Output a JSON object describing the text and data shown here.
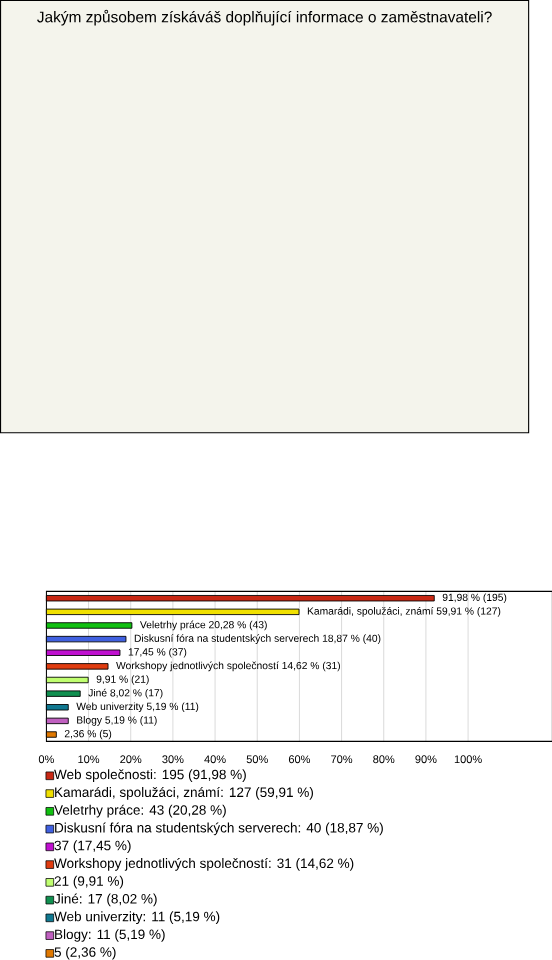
{
  "chart_data": {
    "type": "bar",
    "orientation": "horizontal",
    "title": "Jakým způsobem získáváš doplňující informace o zaměstnavateli?",
    "categories": [
      null,
      null,
      null,
      null,
      null,
      null,
      null,
      null,
      null,
      null,
      null
    ],
    "series": [
      {
        "name": "Web společnosti: 195 (91,98 %)",
        "color": "#c82814",
        "values": [
          91.98,
          null,
          null,
          null,
          null,
          null,
          null,
          null,
          null,
          null,
          null
        ],
        "value_labels": [
          "91,98 % (195)",
          null,
          null,
          null,
          null,
          null,
          null,
          null,
          null,
          null,
          null
        ]
      },
      {
        "name": "Kamarádi, spolužáci, známí: 127 (59,91 %)",
        "color": "#f0e000",
        "values": [
          null,
          59.91,
          null,
          null,
          null,
          null,
          null,
          null,
          null,
          null,
          null
        ],
        "value_labels": [
          null,
          "Kamarádi, spolužáci, známí 59,91 % (127)",
          null,
          null,
          null,
          null,
          null,
          null,
          null,
          null,
          null
        ]
      },
      {
        "name": "Veletrhy práce: 43 (20,28 %)",
        "color": "#10c010",
        "values": [
          null,
          null,
          20.28,
          null,
          null,
          null,
          null,
          null,
          null,
          null,
          null
        ],
        "value_labels": [
          null,
          null,
          "Veletrhy práce 20,28 % (43)",
          null,
          null,
          null,
          null,
          null,
          null,
          null,
          null
        ]
      },
      {
        "name": "Diskusní fóra na studentských serverech: 40 (18,87 %)",
        "color": "#4060e0",
        "values": [
          null,
          null,
          null,
          18.87,
          null,
          null,
          null,
          null,
          null,
          null,
          null
        ],
        "value_labels": [
          null,
          null,
          null,
          "Diskusní fóra na studentských serverech 18,87 % (40)",
          null,
          null,
          null,
          null,
          null,
          null,
          null
        ]
      },
      {
        "name": "37 (17,45 %)",
        "color": "#c010d0",
        "values": [
          null,
          null,
          null,
          null,
          17.45,
          null,
          null,
          null,
          null,
          null,
          null
        ],
        "value_labels": [
          null,
          null,
          null,
          null,
          "17,45 % (37)",
          null,
          null,
          null,
          null,
          null,
          null
        ]
      },
      {
        "name": "Workshopy jednotlivých společností: 31 (14,62 %)",
        "color": "#e03c10",
        "values": [
          null,
          null,
          null,
          null,
          null,
          14.62,
          null,
          null,
          null,
          null,
          null
        ],
        "value_labels": [
          null,
          null,
          null,
          null,
          null,
          "Workshopy jednotlivých společností 14,62 % (31)",
          null,
          null,
          null,
          null,
          null
        ]
      },
      {
        "name": "21 (9,91 %)",
        "color": "#c0ff70",
        "values": [
          null,
          null,
          null,
          null,
          null,
          null,
          9.91,
          null,
          null,
          null,
          null
        ],
        "value_labels": [
          null,
          null,
          null,
          null,
          null,
          null,
          "9,91 % (21)",
          null,
          null,
          null,
          null
        ]
      },
      {
        "name": "Jiné: 17 (8,02 %)",
        "color": "#109050",
        "values": [
          null,
          null,
          null,
          null,
          null,
          null,
          null,
          8.02,
          null,
          null,
          null
        ],
        "value_labels": [
          null,
          null,
          null,
          null,
          null,
          null,
          null,
          "Jiné 8,02 % (17)",
          null,
          null,
          null
        ]
      },
      {
        "name": "Web univerzity: 11 (5,19 %)",
        "color": "#107890",
        "values": [
          null,
          null,
          null,
          null,
          null,
          null,
          null,
          null,
          5.19,
          null,
          null
        ],
        "value_labels": [
          null,
          null,
          null,
          null,
          null,
          null,
          null,
          null,
          "Web univerzity 5,19 % (11)",
          null,
          null
        ]
      },
      {
        "name": "Blogy: 11 (5,19 %)",
        "color": "#c060c0",
        "values": [
          null,
          null,
          null,
          null,
          null,
          null,
          null,
          null,
          null,
          5.19,
          null
        ],
        "value_labels": [
          null,
          null,
          null,
          null,
          null,
          null,
          null,
          null,
          null,
          "Blogy 5,19 % (11)",
          null
        ]
      },
      {
        "name": "5 (2,36 %)",
        "color": "#e07800",
        "values": [
          null,
          null,
          null,
          null,
          null,
          null,
          null,
          null,
          null,
          null,
          2.36
        ],
        "value_labels": [
          null,
          null,
          null,
          null,
          null,
          null,
          null,
          null,
          null,
          null,
          "2,36 % (5)"
        ]
      }
    ],
    "xlim": [
      0,
      120
    ],
    "xticks": [
      {
        "value": 0,
        "label": "0%"
      },
      {
        "value": 10,
        "label": "10%"
      },
      {
        "value": 20,
        "label": "20%"
      },
      {
        "value": 30,
        "label": "30%"
      },
      {
        "value": 40,
        "label": "40%"
      },
      {
        "value": 50,
        "label": "50%"
      },
      {
        "value": 60,
        "label": "60%"
      },
      {
        "value": 70,
        "label": "70%"
      },
      {
        "value": 80,
        "label": "80%"
      },
      {
        "value": 90,
        "label": "90%"
      },
      {
        "value": 100,
        "label": "100%"
      }
    ],
    "grid": "x",
    "tick_labels": "x",
    "legend": "bottom left"
  }
}
